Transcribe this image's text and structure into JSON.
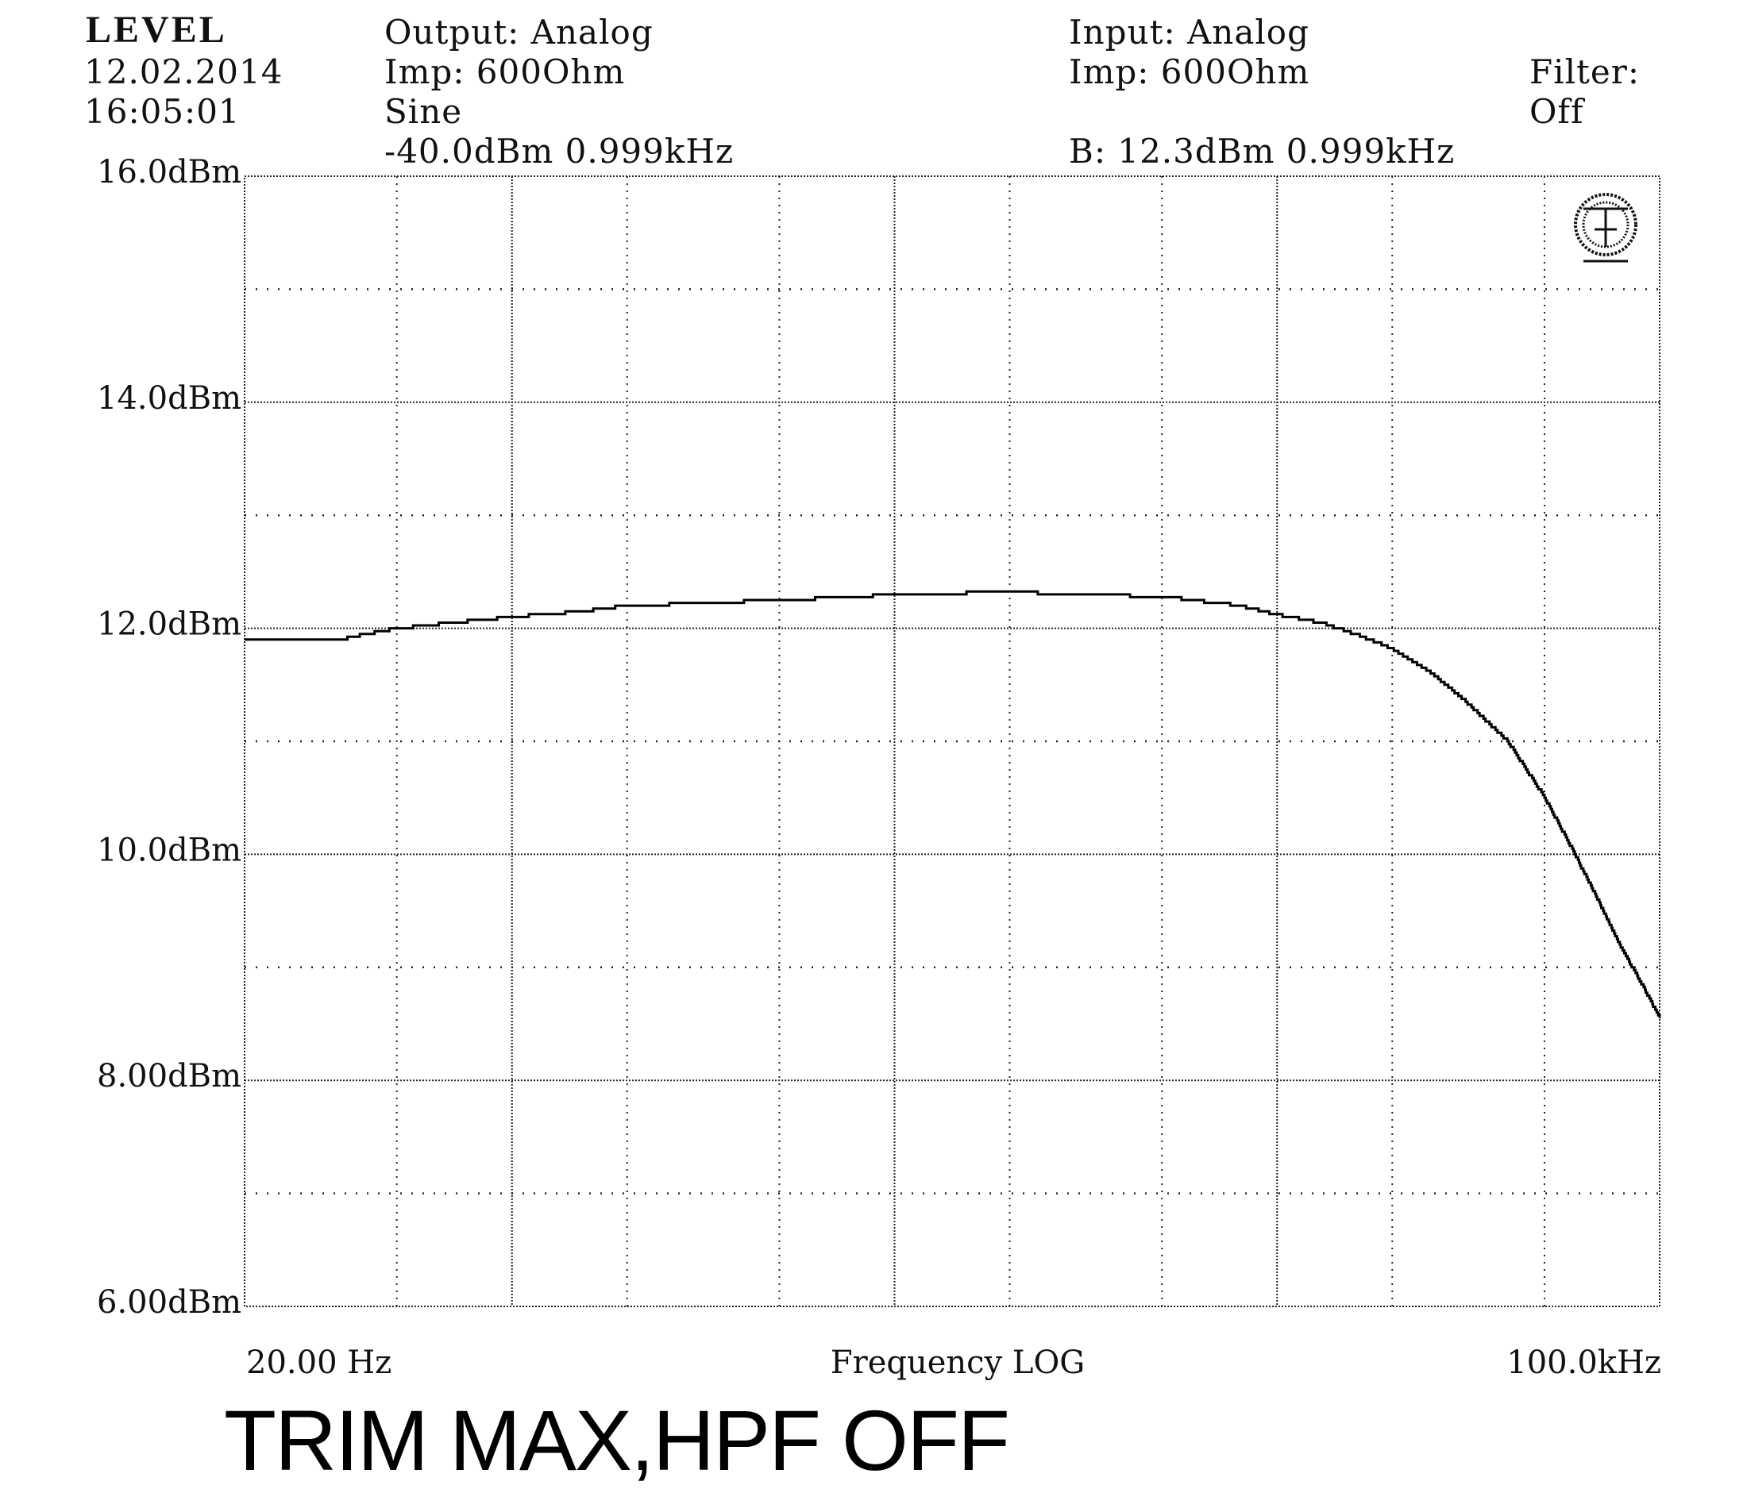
{
  "header": {
    "title": "LEVEL",
    "date": "12.02.2014",
    "time": "16:05:01",
    "output": {
      "source": "Output: Analog",
      "impedance": "Imp: 600Ohm",
      "waveform": "Sine",
      "level": "-40.0dBm 0.999kHz"
    },
    "input": {
      "source": "Input: Analog",
      "impedance": "Imp: 600Ohm",
      "reading": "B: 12.3dBm 0.999kHz"
    },
    "filter": {
      "label": "Filter:",
      "value": "Off"
    }
  },
  "caption": "TRIM MAX,HPF OFF",
  "chart_data": {
    "type": "line",
    "x_scale": "log",
    "xlim": [
      20,
      100000
    ],
    "ylim": [
      6,
      16
    ],
    "xlabel": "Frequency LOG",
    "x_tick_labels": [
      "20.00 Hz",
      "100.0kHz"
    ],
    "y_tick_labels": [
      "16.0dBm",
      "14.0dBm",
      "12.0dBm",
      "10.0dBm",
      "8.00dBm",
      "6.00dBm"
    ],
    "y_tick_values": [
      16,
      14,
      12,
      10,
      8,
      6
    ],
    "grid": true,
    "series": [
      {
        "x": [
          20,
          35,
          50,
          70,
          100,
          150,
          200,
          300,
          500,
          800,
          1000,
          2000,
          3000,
          5000,
          8000,
          10000,
          13000,
          16000,
          20000,
          25000,
          30000,
          40000,
          50000,
          60000,
          70000,
          80000,
          90000,
          100000
        ],
        "y": [
          11.9,
          11.9,
          12.0,
          12.05,
          12.1,
          12.15,
          12.2,
          12.22,
          12.25,
          12.28,
          12.3,
          12.32,
          12.3,
          12.28,
          12.2,
          12.12,
          12.05,
          11.95,
          11.82,
          11.62,
          11.4,
          11.0,
          10.5,
          10.0,
          9.55,
          9.15,
          8.85,
          8.55
        ]
      }
    ]
  }
}
